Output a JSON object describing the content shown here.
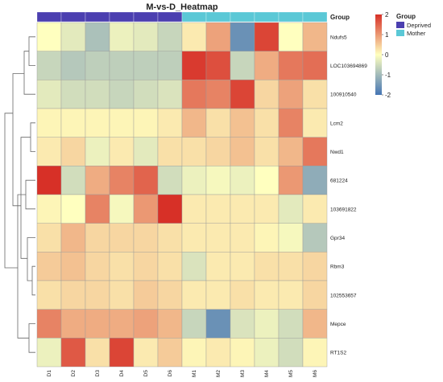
{
  "chart_data": {
    "type": "heatmap",
    "title": "M-vs-D_Heatmap",
    "columns": [
      "D1",
      "D2",
      "D3",
      "D4",
      "D5",
      "D6",
      "M1",
      "M2",
      "M3",
      "M4",
      "M5",
      "M6"
    ],
    "column_groups": [
      "Deprived",
      "Deprived",
      "Deprived",
      "Deprived",
      "Deprived",
      "Deprived",
      "Mother",
      "Mother",
      "Mother",
      "Mother",
      "Mother",
      "Mother"
    ],
    "group_annotation_label": "Group",
    "rows": [
      "Ndufs5",
      "LOC103694869",
      "100910540",
      "Lcm2",
      "Nwd1",
      "681224",
      "103691822",
      "Gpr34",
      "Rbm3",
      "102553657",
      "Mepce",
      "RT1S2"
    ],
    "values": [
      [
        0.0,
        -0.3,
        -0.9,
        -0.2,
        -0.3,
        -0.6,
        0.2,
        0.9,
        -1.6,
        1.8,
        0.0,
        0.7
      ],
      [
        -0.6,
        -0.8,
        -0.7,
        -0.7,
        -0.7,
        -0.7,
        1.9,
        1.7,
        -0.6,
        0.8,
        1.3,
        1.4
      ],
      [
        -0.3,
        -0.5,
        -0.5,
        -0.6,
        -0.5,
        -0.4,
        1.3,
        1.2,
        1.8,
        0.4,
        0.9,
        0.3
      ],
      [
        0.1,
        0.1,
        0.1,
        0.1,
        0.1,
        0.2,
        0.7,
        0.3,
        0.6,
        0.3,
        1.2,
        0.2
      ],
      [
        0.2,
        0.4,
        -0.2,
        0.2,
        -0.3,
        0.3,
        0.3,
        0.4,
        0.6,
        0.3,
        0.7,
        1.3
      ],
      [
        2.0,
        -0.5,
        0.8,
        1.2,
        1.5,
        -0.5,
        -0.2,
        -0.1,
        -0.2,
        0.0,
        1.0,
        -1.2
      ],
      [
        0.1,
        0.0,
        1.2,
        -0.1,
        1.0,
        2.0,
        0.2,
        0.2,
        0.2,
        0.2,
        -0.3,
        0.2
      ],
      [
        0.3,
        0.7,
        0.4,
        0.4,
        0.4,
        0.3,
        0.2,
        0.2,
        0.2,
        0.1,
        -0.1,
        -0.8
      ],
      [
        0.5,
        0.6,
        0.4,
        0.3,
        0.4,
        0.3,
        -0.4,
        0.2,
        0.2,
        0.3,
        0.3,
        0.4
      ],
      [
        0.3,
        0.4,
        0.4,
        0.3,
        0.5,
        0.4,
        0.2,
        0.2,
        0.3,
        0.2,
        0.2,
        0.4
      ],
      [
        1.2,
        0.8,
        0.8,
        0.8,
        0.9,
        0.7,
        -0.6,
        -1.6,
        -0.4,
        -0.2,
        -0.5,
        0.7
      ],
      [
        -0.2,
        1.6,
        0.3,
        1.8,
        0.2,
        0.5,
        0.1,
        0.2,
        0.1,
        -0.2,
        -0.5,
        0.1
      ]
    ],
    "colorbar": {
      "min": -2,
      "max": 2,
      "ticks": [
        2,
        1,
        0,
        -1,
        -2
      ],
      "low_color": "#4575b4",
      "mid_color": "#ffffbf",
      "high_color": "#d73027"
    },
    "legend": {
      "title": "Group",
      "placement": "top-right",
      "entries": [
        {
          "label": "Deprived",
          "color": "#4b3fb0"
        },
        {
          "label": "Mother",
          "color": "#5bc8d6"
        }
      ]
    },
    "row_dendrogram": "left"
  }
}
